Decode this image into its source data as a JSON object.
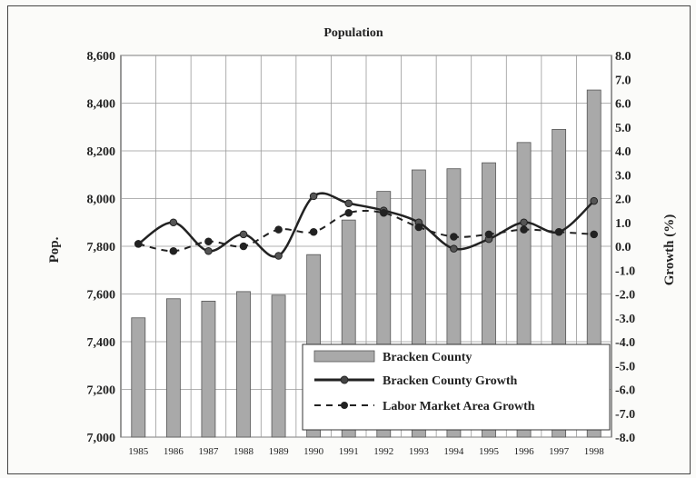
{
  "chart_data": {
    "type": "bar",
    "title": "Population",
    "categories": [
      "1985",
      "1986",
      "1987",
      "1988",
      "1989",
      "1990",
      "1991",
      "1992",
      "1993",
      "1994",
      "1995",
      "1996",
      "1997",
      "1998"
    ],
    "ylabel": "Pop.",
    "y2label": "Growth (%)",
    "ylim": [
      7000,
      8600
    ],
    "y2lim": [
      -8.0,
      8.0
    ],
    "y_ticks": [
      "7,000",
      "7,200",
      "7,400",
      "7,600",
      "7,800",
      "8,000",
      "8,200",
      "8,400",
      "8,600"
    ],
    "y2_ticks": [
      "-8.0",
      "-7.0",
      "-6.0",
      "-5.0",
      "-4.0",
      "-3.0",
      "-2.0",
      "-1.0",
      "0.0",
      "1.0",
      "2.0",
      "3.0",
      "4.0",
      "5.0",
      "6.0",
      "7.0",
      "8.0"
    ],
    "grid": true,
    "legend_position": "bottom-right",
    "series": [
      {
        "name": "Bracken County",
        "type": "bar",
        "axis": "left",
        "color": "#a9a9a9",
        "values": [
          7500,
          7580,
          7570,
          7610,
          7595,
          7765,
          7910,
          8030,
          8120,
          8125,
          8150,
          8235,
          8290,
          8455
        ]
      },
      {
        "name": "Bracken County Growth",
        "type": "line",
        "axis": "right",
        "color": "#222222",
        "values": [
          0.1,
          1.0,
          -0.2,
          0.5,
          -0.4,
          2.1,
          1.8,
          1.5,
          1.0,
          -0.1,
          0.3,
          1.0,
          0.6,
          1.9
        ]
      },
      {
        "name": "Labor Market Area Growth",
        "type": "line",
        "axis": "right",
        "color": "#222222",
        "dashed": true,
        "values": [
          0.1,
          -0.2,
          0.2,
          0.0,
          0.7,
          0.6,
          1.4,
          1.4,
          0.8,
          0.4,
          0.5,
          0.7,
          0.6,
          0.5
        ]
      }
    ]
  }
}
